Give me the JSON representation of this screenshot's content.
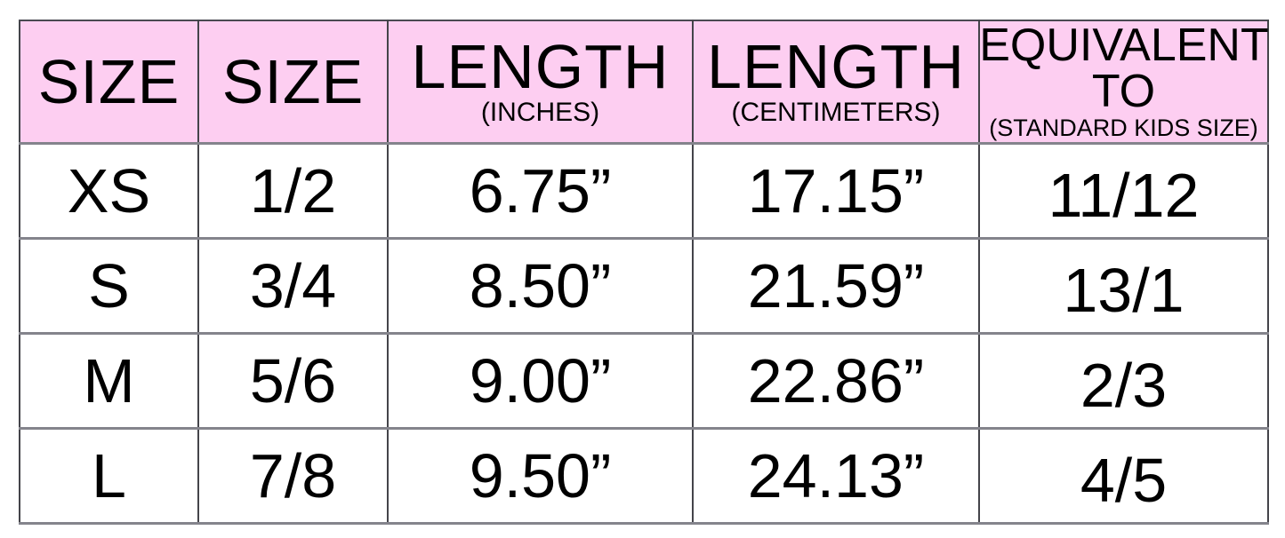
{
  "chart_data": {
    "type": "table",
    "columns": [
      "SIZE",
      "SIZE",
      "LENGTH (INCHES)",
      "LENGTH (CENTIMETERS)",
      "EQUIVALENT TO (STANDARD KIDS SIZE)"
    ],
    "rows": [
      [
        "XS",
        "1/2",
        "6.75”",
        "17.15”",
        "11/12"
      ],
      [
        "S",
        "3/4",
        "8.50”",
        "21.59”",
        "13/1"
      ],
      [
        "M",
        "5/6",
        "9.00”",
        "22.86”",
        "2/3"
      ],
      [
        "L",
        "7/8",
        "9.50”",
        "24.13”",
        "4/5"
      ]
    ]
  },
  "header": {
    "cells": [
      {
        "title": "SIZE"
      },
      {
        "title": "SIZE"
      },
      {
        "title": "LENGTH",
        "subtitle": "(INCHES)"
      },
      {
        "title": "LENGTH",
        "subtitle": "(CENTIMETERS)"
      },
      {
        "title": "EQUIVALENT TO",
        "subtitle": "(STANDARD KIDS SIZE)"
      }
    ]
  },
  "colors": {
    "header_background": "#FDCEF1",
    "grid_horizontal": "#84848C",
    "grid_vertical": "#44444A",
    "outer_border": "#4A4A52",
    "text": "#000000",
    "background": "#FFFFFF"
  }
}
